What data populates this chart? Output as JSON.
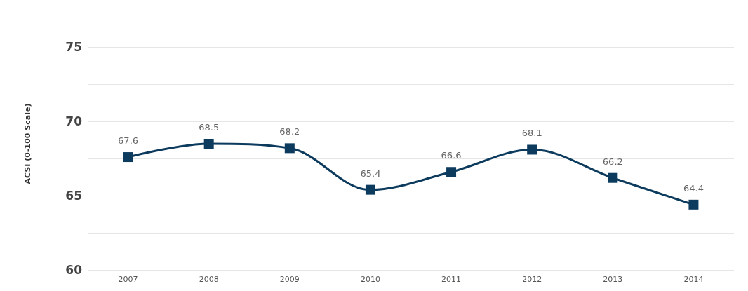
{
  "chart_data": {
    "type": "line",
    "ylabel": "ACSI (0-100 Scale)",
    "categories": [
      "2007",
      "2008",
      "2009",
      "2010",
      "2011",
      "2012",
      "2013",
      "2014"
    ],
    "series": [
      {
        "color": "#0d3b5e",
        "values": [
          67.6,
          68.5,
          68.2,
          65.4,
          66.6,
          68.1,
          66.2,
          64.4
        ]
      }
    ],
    "ylim": [
      60,
      77
    ],
    "yticks": [
      60,
      {
        "value": 62.5,
        "label": null
      },
      65,
      {
        "value": 67.5,
        "label": null
      },
      70,
      {
        "value": 72.5,
        "label": null
      },
      75
    ],
    "grid": "y",
    "marker": "square",
    "line_style": "solid",
    "data_labels": true
  }
}
